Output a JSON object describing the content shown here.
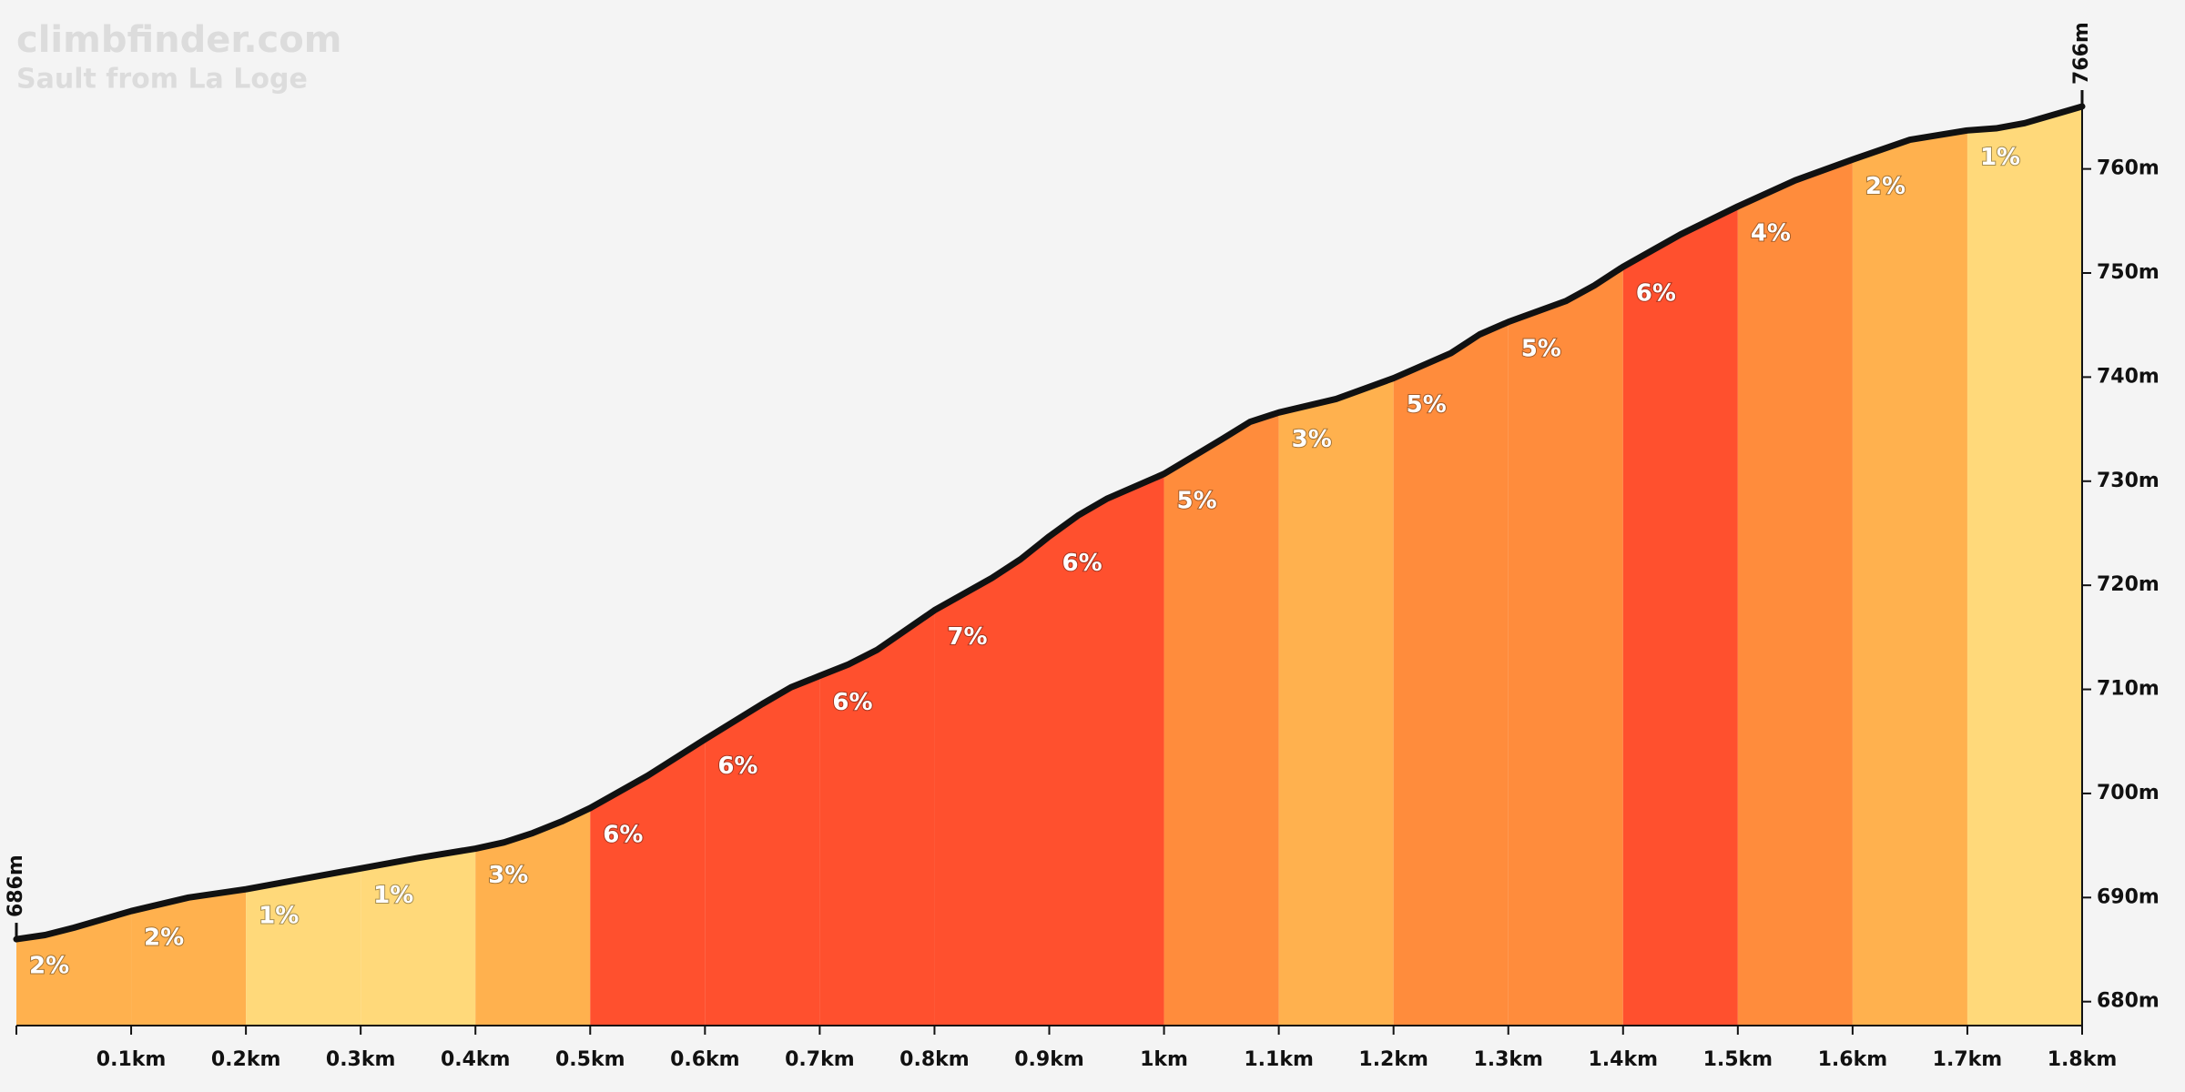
{
  "chart_data": {
    "type": "elevation_profile",
    "title": "climbfinder.com",
    "subtitle": "Sault from La Loge",
    "x": [
      0,
      0.025,
      0.05,
      0.1,
      0.15,
      0.2,
      0.25,
      0.3,
      0.35,
      0.4,
      0.425,
      0.45,
      0.475,
      0.5,
      0.55,
      0.6,
      0.65,
      0.675,
      0.7,
      0.725,
      0.75,
      0.8,
      0.85,
      0.875,
      0.9,
      0.925,
      0.95,
      1.0,
      1.05,
      1.075,
      1.1,
      1.15,
      1.2,
      1.25,
      1.275,
      1.3,
      1.35,
      1.375,
      1.4,
      1.45,
      1.5,
      1.55,
      1.6,
      1.65,
      1.7,
      1.725,
      1.75,
      1.8
    ],
    "values": [
      686,
      686.4,
      687.1,
      688.7,
      690.0,
      690.8,
      691.8,
      692.8,
      693.8,
      694.7,
      695.3,
      696.2,
      697.3,
      698.6,
      701.7,
      705.2,
      708.6,
      710.2,
      711.3,
      712.4,
      713.8,
      717.6,
      720.7,
      722.5,
      724.7,
      726.7,
      728.3,
      730.7,
      734.0,
      735.7,
      736.6,
      737.9,
      739.9,
      742.3,
      744.1,
      745.3,
      747.3,
      748.8,
      750.6,
      753.7,
      756.4,
      758.9,
      760.9,
      762.8,
      763.7,
      763.9,
      764.4,
      766
    ],
    "line_color": "#111111",
    "segments": {
      "bins": [
        0,
        0.1,
        0.2,
        0.3,
        0.4,
        0.5,
        0.6,
        0.7,
        0.8,
        0.9,
        1.0,
        1.1,
        1.2,
        1.3,
        1.4,
        1.5,
        1.6,
        1.7,
        1.8
      ],
      "values": [
        2,
        2,
        1,
        1,
        3,
        6,
        6,
        6,
        7,
        6,
        5,
        3,
        5,
        5,
        6,
        4,
        2,
        1
      ],
      "value_labels": [
        "2%",
        "2%",
        "1%",
        "1%",
        "3%",
        "6%",
        "6%",
        "6%",
        "7%",
        "6%",
        "5%",
        "3%",
        "5%",
        "5%",
        "6%",
        "4%",
        "2%",
        "1%"
      ],
      "colors": [
        "#ffb14e",
        "#ffb14e",
        "#ffd97a",
        "#ffd97a",
        "#ffb14e",
        "#ff502e",
        "#ff502e",
        "#ff502e",
        "#ff502e",
        "#ff502e",
        "#ff8c3c",
        "#ffb14e",
        "#ff8c3c",
        "#ff8c3c",
        "#ff502e",
        "#ff8c3c",
        "#ffb14e",
        "#ffd97a"
      ]
    },
    "start_label": "686m",
    "end_label": "766m",
    "xlim": [
      0,
      1.8
    ],
    "ylim": [
      677.7,
      766
    ],
    "xticks": [
      {
        "value": 0.1,
        "label": "0.1km"
      },
      {
        "value": 0.2,
        "label": "0.2km"
      },
      {
        "value": 0.3,
        "label": "0.3km"
      },
      {
        "value": 0.4,
        "label": "0.4km"
      },
      {
        "value": 0.5,
        "label": "0.5km"
      },
      {
        "value": 0.6,
        "label": "0.6km"
      },
      {
        "value": 0.7,
        "label": "0.7km"
      },
      {
        "value": 0.8,
        "label": "0.8km"
      },
      {
        "value": 0.9,
        "label": "0.9km"
      },
      {
        "value": 1.0,
        "label": "1km"
      },
      {
        "value": 1.1,
        "label": "1.1km"
      },
      {
        "value": 1.2,
        "label": "1.2km"
      },
      {
        "value": 1.3,
        "label": "1.3km"
      },
      {
        "value": 1.4,
        "label": "1.4km"
      },
      {
        "value": 1.5,
        "label": "1.5km"
      },
      {
        "value": 1.6,
        "label": "1.6km"
      },
      {
        "value": 1.7,
        "label": "1.7km"
      },
      {
        "value": 1.8,
        "label": "1.8km"
      }
    ],
    "yticks": [
      {
        "value": 680,
        "label": "680m"
      },
      {
        "value": 690,
        "label": "690m"
      },
      {
        "value": 700,
        "label": "700m"
      },
      {
        "value": 710,
        "label": "710m"
      },
      {
        "value": 720,
        "label": "720m"
      },
      {
        "value": 730,
        "label": "730m"
      },
      {
        "value": 740,
        "label": "740m"
      },
      {
        "value": 750,
        "label": "750m"
      },
      {
        "value": 760,
        "label": "760m"
      }
    ]
  }
}
